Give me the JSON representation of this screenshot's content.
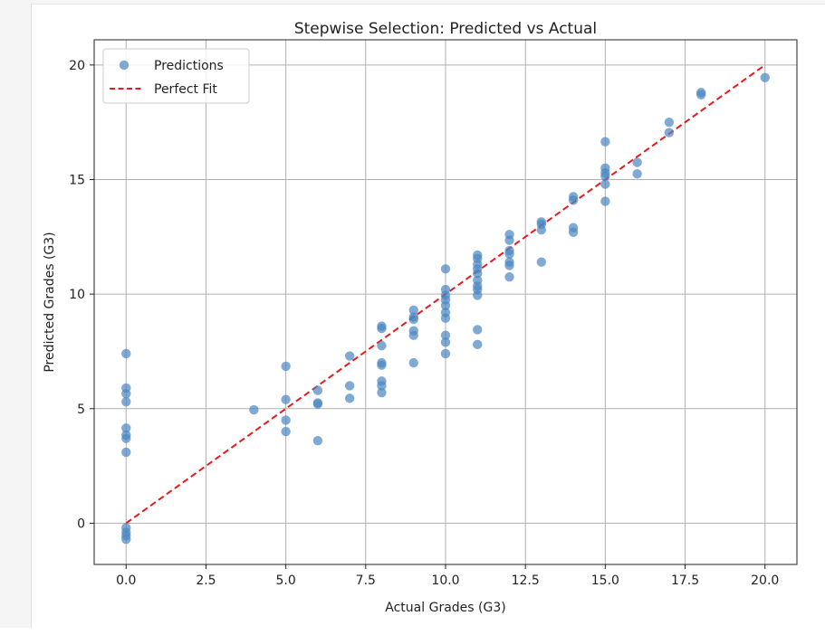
{
  "chart_data": {
    "type": "scatter",
    "title": "Stepwise Selection: Predicted vs Actual",
    "xlabel": "Actual Grades (G3)",
    "ylabel": "Predicted Grades (G3)",
    "xlim": [
      -1,
      21
    ],
    "ylim": [
      -1.8,
      21.1
    ],
    "xticks": [
      0.0,
      2.5,
      5.0,
      7.5,
      10.0,
      12.5,
      15.0,
      17.5,
      20.0
    ],
    "xtick_labels": [
      "0.0",
      "2.5",
      "5.0",
      "7.5",
      "10.0",
      "12.5",
      "15.0",
      "17.5",
      "20.0"
    ],
    "yticks": [
      0,
      5,
      10,
      15,
      20
    ],
    "ytick_labels": [
      "0",
      "5",
      "10",
      "15",
      "20"
    ],
    "grid": true,
    "legend_position": "upper-left",
    "legend": [
      {
        "label": "Predictions",
        "kind": "marker"
      },
      {
        "label": "Perfect Fit",
        "kind": "dashed-line"
      }
    ],
    "series": [
      {
        "name": "Predictions",
        "kind": "scatter",
        "color": "#4a86c0",
        "points": [
          [
            0,
            7.4
          ],
          [
            0,
            5.9
          ],
          [
            0,
            5.65
          ],
          [
            0,
            5.3
          ],
          [
            0,
            4.15
          ],
          [
            0,
            3.85
          ],
          [
            0,
            3.7
          ],
          [
            0,
            3.1
          ],
          [
            0,
            -0.2
          ],
          [
            0,
            -0.4
          ],
          [
            0,
            -0.55
          ],
          [
            0,
            -0.7
          ],
          [
            4,
            4.95
          ],
          [
            5,
            6.85
          ],
          [
            5,
            5.4
          ],
          [
            5,
            4.5
          ],
          [
            5,
            4.0
          ],
          [
            6,
            5.8
          ],
          [
            6,
            5.25
          ],
          [
            6,
            5.2
          ],
          [
            6,
            3.6
          ],
          [
            7,
            7.3
          ],
          [
            7,
            6.0
          ],
          [
            7,
            5.45
          ],
          [
            8,
            8.6
          ],
          [
            8,
            8.5
          ],
          [
            8,
            7.75
          ],
          [
            8,
            7.0
          ],
          [
            8,
            6.9
          ],
          [
            8,
            6.2
          ],
          [
            8,
            6.0
          ],
          [
            8,
            5.7
          ],
          [
            9,
            9.3
          ],
          [
            9,
            9.0
          ],
          [
            9,
            8.9
          ],
          [
            9,
            8.4
          ],
          [
            9,
            8.2
          ],
          [
            9,
            7.0
          ],
          [
            10,
            11.1
          ],
          [
            10,
            10.2
          ],
          [
            10,
            9.95
          ],
          [
            10,
            9.75
          ],
          [
            10,
            9.5
          ],
          [
            10,
            9.2
          ],
          [
            10,
            8.95
          ],
          [
            10,
            8.2
          ],
          [
            10,
            7.9
          ],
          [
            10,
            7.4
          ],
          [
            11,
            11.7
          ],
          [
            11,
            11.55
          ],
          [
            11,
            11.3
          ],
          [
            11,
            11.1
          ],
          [
            11,
            10.9
          ],
          [
            11,
            10.6
          ],
          [
            11,
            10.35
          ],
          [
            11,
            10.2
          ],
          [
            11,
            9.95
          ],
          [
            11,
            8.45
          ],
          [
            11,
            7.8
          ],
          [
            12,
            12.6
          ],
          [
            12,
            12.35
          ],
          [
            12,
            11.9
          ],
          [
            12,
            11.75
          ],
          [
            12,
            11.4
          ],
          [
            12,
            11.25
          ],
          [
            12,
            10.75
          ],
          [
            13,
            13.15
          ],
          [
            13,
            13.05
          ],
          [
            13,
            12.8
          ],
          [
            13,
            11.4
          ],
          [
            14,
            14.25
          ],
          [
            14,
            14.1
          ],
          [
            14,
            12.9
          ],
          [
            14,
            12.7
          ],
          [
            15,
            16.65
          ],
          [
            15,
            15.5
          ],
          [
            15,
            15.3
          ],
          [
            15,
            15.15
          ],
          [
            15,
            14.8
          ],
          [
            15,
            14.05
          ],
          [
            16,
            15.75
          ],
          [
            16,
            15.25
          ],
          [
            17,
            17.5
          ],
          [
            17,
            17.05
          ],
          [
            18,
            18.8
          ],
          [
            18,
            18.7
          ],
          [
            20,
            19.45
          ]
        ]
      },
      {
        "name": "Perfect Fit",
        "kind": "line",
        "color": "#e8191b",
        "dash": true,
        "x": [
          0,
          20
        ],
        "y": [
          0,
          20
        ]
      }
    ]
  }
}
